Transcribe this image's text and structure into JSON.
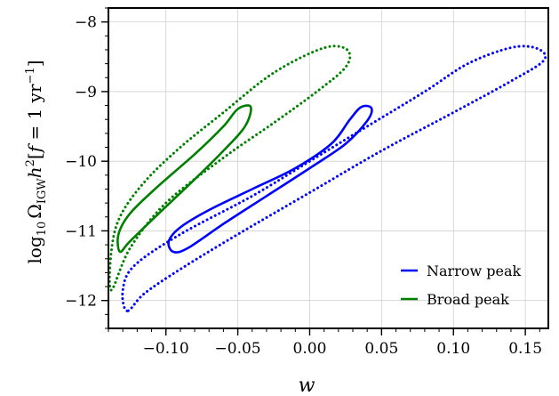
{
  "chart_data": {
    "type": "line",
    "title": "",
    "xlabel": "w",
    "ylabel_math": {
      "log": "log",
      "log_sub": "10",
      "omega": "Ω",
      "omega_sub": "IGW",
      "h": "h",
      "h_sup": "2",
      "bracket_open": "[",
      "f": "f",
      "eq": " = 1 yr",
      "yr_sup": "−1",
      "bracket_close": "]"
    },
    "xlim": [
      -0.14,
      0.166
    ],
    "ylim": [
      -12.4,
      -7.8
    ],
    "x_ticks": [
      -0.1,
      -0.05,
      0.0,
      0.05,
      0.1,
      0.15
    ],
    "x_tick_labels": [
      "−0.10",
      "−0.05",
      "0.00",
      "0.05",
      "0.10",
      "0.15"
    ],
    "y_ticks": [
      -12,
      -11,
      -10,
      -9,
      -8
    ],
    "y_tick_labels": [
      "−12",
      "−11",
      "−10",
      "−9",
      "−8"
    ],
    "x_minor_step": 0.01,
    "y_minor_step": 0.2,
    "grid": true,
    "legend_position": "lower-right",
    "legend": [
      {
        "label": "Narrow peak",
        "color": "#0000ff"
      },
      {
        "label": "Broad peak",
        "color": "#008000"
      }
    ],
    "series": [
      {
        "name": "Narrow peak",
        "color": "#0000ff",
        "contours": [
          {
            "style": "solid",
            "polygon": [
              [
                -0.095,
                -11.3
              ],
              [
                -0.098,
                -11.15
              ],
              [
                -0.09,
                -10.95
              ],
              [
                -0.07,
                -10.7
              ],
              [
                -0.04,
                -10.4
              ],
              [
                -0.01,
                -10.1
              ],
              [
                0.015,
                -9.75
              ],
              [
                0.028,
                -9.4
              ],
              [
                0.036,
                -9.22
              ],
              [
                0.043,
                -9.24
              ],
              [
                0.04,
                -9.42
              ],
              [
                0.025,
                -9.75
              ],
              [
                0.0,
                -10.1
              ],
              [
                -0.03,
                -10.5
              ],
              [
                -0.06,
                -10.9
              ],
              [
                -0.085,
                -11.25
              ]
            ]
          },
          {
            "style": "dotted",
            "polygon": [
              [
                -0.127,
                -12.15
              ],
              [
                -0.13,
                -11.85
              ],
              [
                -0.122,
                -11.5
              ],
              [
                -0.09,
                -11.05
              ],
              [
                -0.04,
                -10.5
              ],
              [
                0.0,
                -10.0
              ],
              [
                0.04,
                -9.5
              ],
              [
                0.08,
                -9.0
              ],
              [
                0.11,
                -8.6
              ],
              [
                0.14,
                -8.37
              ],
              [
                0.158,
                -8.38
              ],
              [
                0.163,
                -8.55
              ],
              [
                0.14,
                -8.85
              ],
              [
                0.1,
                -9.3
              ],
              [
                0.05,
                -9.85
              ],
              [
                0.0,
                -10.45
              ],
              [
                -0.05,
                -11.05
              ],
              [
                -0.09,
                -11.55
              ],
              [
                -0.115,
                -11.9
              ]
            ]
          }
        ]
      },
      {
        "name": "Broad peak",
        "color": "#008000",
        "contours": [
          {
            "style": "solid",
            "polygon": [
              [
                -0.132,
                -11.3
              ],
              [
                -0.133,
                -11.05
              ],
              [
                -0.125,
                -10.75
              ],
              [
                -0.105,
                -10.35
              ],
              [
                -0.08,
                -9.9
              ],
              [
                -0.06,
                -9.5
              ],
              [
                -0.05,
                -9.25
              ],
              [
                -0.041,
                -9.22
              ],
              [
                -0.045,
                -9.5
              ],
              [
                -0.06,
                -9.85
              ],
              [
                -0.082,
                -10.3
              ],
              [
                -0.105,
                -10.75
              ],
              [
                -0.125,
                -11.15
              ]
            ]
          },
          {
            "style": "dotted",
            "polygon": [
              [
                -0.138,
                -11.85
              ],
              [
                -0.138,
                -11.3
              ],
              [
                -0.132,
                -10.8
              ],
              [
                -0.115,
                -10.3
              ],
              [
                -0.09,
                -9.8
              ],
              [
                -0.06,
                -9.3
              ],
              [
                -0.03,
                -8.8
              ],
              [
                -0.005,
                -8.5
              ],
              [
                0.015,
                -8.35
              ],
              [
                0.027,
                -8.42
              ],
              [
                0.025,
                -8.65
              ],
              [
                0.005,
                -9.0
              ],
              [
                -0.025,
                -9.45
              ],
              [
                -0.06,
                -9.95
              ],
              [
                -0.1,
                -10.6
              ],
              [
                -0.125,
                -11.25
              ]
            ]
          }
        ]
      }
    ]
  }
}
